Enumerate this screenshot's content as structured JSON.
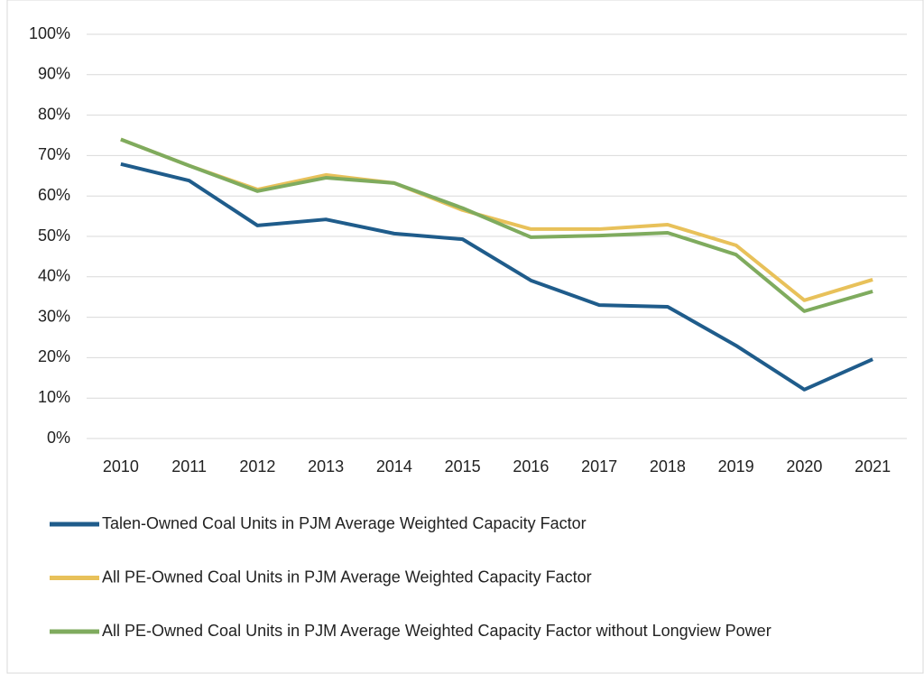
{
  "chart_data": {
    "type": "line",
    "categories": [
      "2010",
      "2011",
      "2012",
      "2013",
      "2014",
      "2015",
      "2016",
      "2017",
      "2018",
      "2019",
      "2020",
      "2021"
    ],
    "series": [
      {
        "name": "Talen-Owned Coal Units in PJM Average Weighted Capacity Factor",
        "color": "#1f5c8b",
        "values": [
          67.9,
          63.8,
          52.7,
          54.2,
          50.7,
          49.3,
          39.1,
          33.0,
          32.6,
          23.0,
          12.1,
          19.6
        ]
      },
      {
        "name": "All PE-Owned Coal Units in PJM Average Weighted Capacity Factor",
        "color": "#e8c15a",
        "values": [
          74.0,
          67.5,
          61.6,
          65.2,
          63.2,
          56.5,
          51.8,
          51.8,
          52.9,
          47.8,
          34.2,
          39.3
        ]
      },
      {
        "name": "All PE-Owned Coal Units in PJM Average Weighted Capacity Factor without Longview Power",
        "color": "#7fab5e",
        "values": [
          74.0,
          67.5,
          61.2,
          64.5,
          63.2,
          57.0,
          49.8,
          50.2,
          50.9,
          45.5,
          31.5,
          36.4
        ]
      }
    ],
    "ylim": [
      0,
      100
    ],
    "yticks": [
      {
        "value": 0,
        "label": "0%"
      },
      {
        "value": 10,
        "label": "10%"
      },
      {
        "value": 20,
        "label": "20%"
      },
      {
        "value": 30,
        "label": "30%"
      },
      {
        "value": 40,
        "label": "40%"
      },
      {
        "value": 50,
        "label": "50%"
      },
      {
        "value": 60,
        "label": "60%"
      },
      {
        "value": 70,
        "label": "70%"
      },
      {
        "value": 80,
        "label": "80%"
      },
      {
        "value": 90,
        "label": "90%"
      },
      {
        "value": 100,
        "label": "100%"
      }
    ],
    "grid": true
  }
}
